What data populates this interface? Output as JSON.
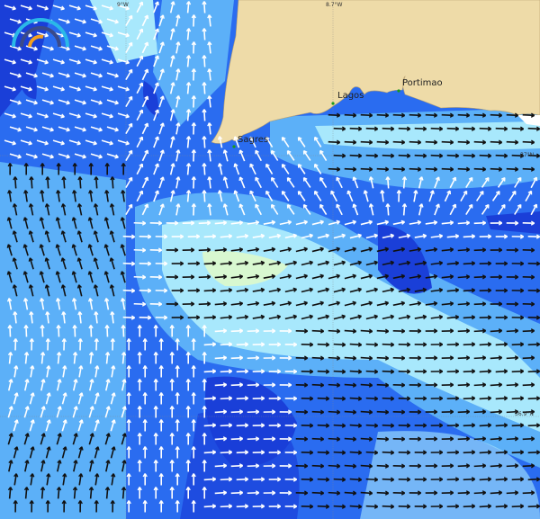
{
  "map": {
    "graticule": {
      "lon_labels": [
        "9°W",
        "8.7°W"
      ],
      "lat_labels": [
        "37°N",
        "36.9°N"
      ]
    },
    "places": [
      {
        "name": "Sagres"
      },
      {
        "name": "Lagos"
      },
      {
        "name": "Portimao"
      }
    ],
    "colors": {
      "land": "#eedba8",
      "deep": "#1a3fd8",
      "mid": "#2a6cf0",
      "light": "#5cb0f8",
      "pale": "#a8e8fc",
      "peak": "#d8f8d0",
      "arrow_weak": "#ffffff",
      "arrow_strong": "#111111"
    },
    "logo_icon": "speed-gauge-icon"
  }
}
